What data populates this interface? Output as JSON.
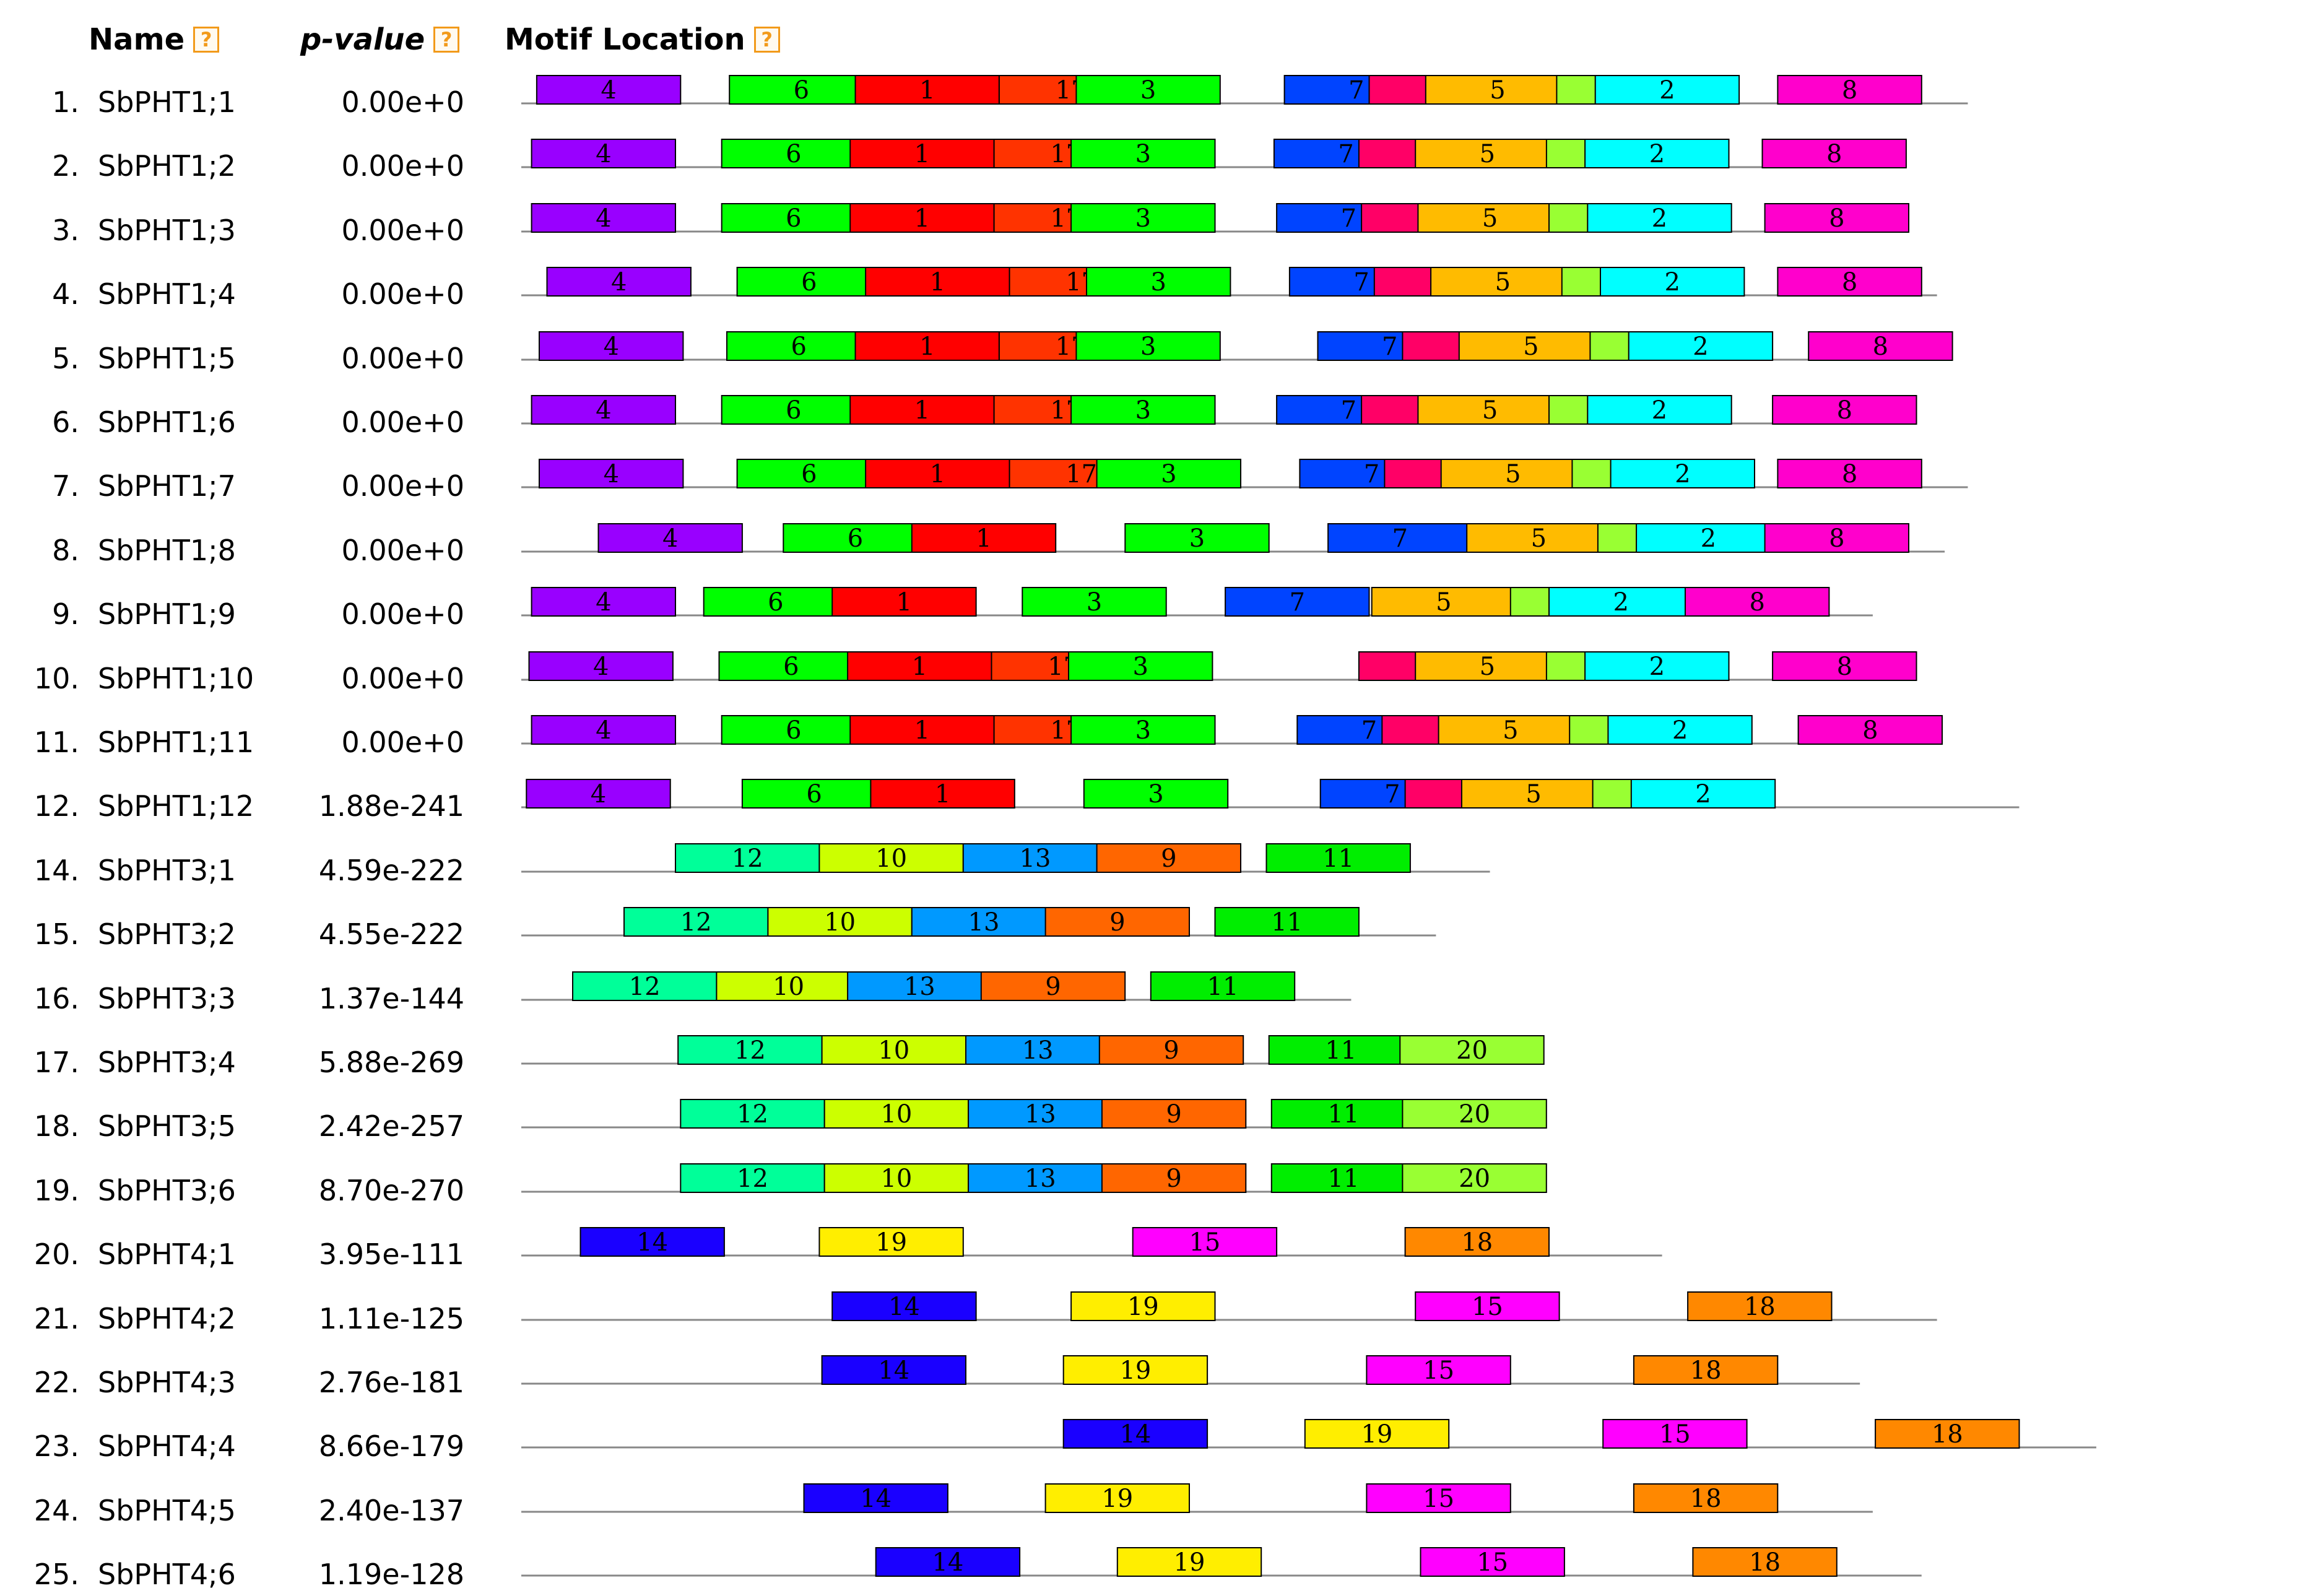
{
  "header": {
    "name_label": "Name",
    "pvalue_label": "p-value",
    "motif_label": "Motif Location",
    "help_glyph": "?"
  },
  "motif_colors": {
    "1": "#ff0000",
    "2": "#00ffff",
    "3": "#00ff00",
    "4": "#9900ff",
    "5": "#ffbb00",
    "6": "#00ff00",
    "7": "#0044ff",
    "8": "#ff00cc",
    "9": "#ff6600",
    "10": "#ccff00",
    "11": "#00ee00",
    "12": "#00ff99",
    "13": "#0099ff",
    "14": "#1a00ff",
    "15": "#ff00ff",
    "16": "#ff0066",
    "17": "#ff3300",
    "18": "#ff8800",
    "19": "#ffee00",
    "20": "#99ff33"
  },
  "rows": [
    {
      "index": "1.",
      "name": "SbPHT1;1",
      "pvalue": "0.00e+0",
      "length": 563,
      "motifs": [
        {
          "id": "4",
          "start": 6
        },
        {
          "id": "6",
          "start": 81
        },
        {
          "id": "1",
          "start": 130
        },
        {
          "id": "17",
          "start": 186
        },
        {
          "id": "3",
          "start": 216
        },
        {
          "id": "7",
          "start": 297
        },
        {
          "id": "16",
          "start": 330
        },
        {
          "id": "5",
          "start": 352
        },
        {
          "id": "20",
          "start": 403
        },
        {
          "id": "2",
          "start": 418
        },
        {
          "id": "8",
          "start": 489
        }
      ]
    },
    {
      "index": "2.",
      "name": "SbPHT1;2",
      "pvalue": "0.00e+0",
      "length": 538,
      "motifs": [
        {
          "id": "4",
          "start": 4
        },
        {
          "id": "6",
          "start": 78
        },
        {
          "id": "1",
          "start": 128
        },
        {
          "id": "17",
          "start": 184
        },
        {
          "id": "3",
          "start": 214
        },
        {
          "id": "7",
          "start": 293
        },
        {
          "id": "16",
          "start": 326
        },
        {
          "id": "5",
          "start": 348
        },
        {
          "id": "20",
          "start": 399
        },
        {
          "id": "2",
          "start": 414
        },
        {
          "id": "8",
          "start": 483
        }
      ]
    },
    {
      "index": "3.",
      "name": "SbPHT1;3",
      "pvalue": "0.00e+0",
      "length": 538,
      "motifs": [
        {
          "id": "4",
          "start": 4
        },
        {
          "id": "6",
          "start": 78
        },
        {
          "id": "1",
          "start": 128
        },
        {
          "id": "17",
          "start": 184
        },
        {
          "id": "3",
          "start": 214
        },
        {
          "id": "7",
          "start": 294
        },
        {
          "id": "16",
          "start": 327
        },
        {
          "id": "5",
          "start": 349
        },
        {
          "id": "20",
          "start": 400
        },
        {
          "id": "2",
          "start": 415
        },
        {
          "id": "8",
          "start": 484
        }
      ]
    },
    {
      "index": "4.",
      "name": "SbPHT1;4",
      "pvalue": "0.00e+0",
      "length": 551,
      "motifs": [
        {
          "id": "4",
          "start": 10
        },
        {
          "id": "6",
          "start": 84
        },
        {
          "id": "1",
          "start": 134
        },
        {
          "id": "17",
          "start": 190
        },
        {
          "id": "3",
          "start": 220
        },
        {
          "id": "7",
          "start": 299
        },
        {
          "id": "16",
          "start": 332
        },
        {
          "id": "5",
          "start": 354
        },
        {
          "id": "20",
          "start": 405
        },
        {
          "id": "2",
          "start": 420
        },
        {
          "id": "8",
          "start": 489
        }
      ]
    },
    {
      "index": "5.",
      "name": "SbPHT1;5",
      "pvalue": "0.00e+0",
      "length": 551,
      "motifs": [
        {
          "id": "4",
          "start": 7
        },
        {
          "id": "6",
          "start": 80
        },
        {
          "id": "1",
          "start": 130
        },
        {
          "id": "17",
          "start": 186
        },
        {
          "id": "3",
          "start": 216
        },
        {
          "id": "7",
          "start": 310
        },
        {
          "id": "16",
          "start": 343
        },
        {
          "id": "5",
          "start": 365
        },
        {
          "id": "20",
          "start": 416
        },
        {
          "id": "2",
          "start": 431
        },
        {
          "id": "8",
          "start": 501
        }
      ]
    },
    {
      "index": "6.",
      "name": "SbPHT1;6",
      "pvalue": "0.00e+0",
      "length": 538,
      "motifs": [
        {
          "id": "4",
          "start": 4
        },
        {
          "id": "6",
          "start": 78
        },
        {
          "id": "1",
          "start": 128
        },
        {
          "id": "17",
          "start": 184
        },
        {
          "id": "3",
          "start": 214
        },
        {
          "id": "7",
          "start": 294
        },
        {
          "id": "16",
          "start": 327
        },
        {
          "id": "5",
          "start": 349
        },
        {
          "id": "20",
          "start": 400
        },
        {
          "id": "2",
          "start": 415
        },
        {
          "id": "8",
          "start": 487
        }
      ]
    },
    {
      "index": "7.",
      "name": "SbPHT1;7",
      "pvalue": "0.00e+0",
      "length": 563,
      "motifs": [
        {
          "id": "4",
          "start": 7
        },
        {
          "id": "6",
          "start": 84
        },
        {
          "id": "1",
          "start": 134
        },
        {
          "id": "17",
          "start": 190
        },
        {
          "id": "3",
          "start": 224
        },
        {
          "id": "7",
          "start": 303
        },
        {
          "id": "16",
          "start": 336
        },
        {
          "id": "5",
          "start": 358
        },
        {
          "id": "20",
          "start": 409
        },
        {
          "id": "2",
          "start": 424
        },
        {
          "id": "8",
          "start": 489
        }
      ]
    },
    {
      "index": "8.",
      "name": "SbPHT1;8",
      "pvalue": "0.00e+0",
      "length": 554,
      "motifs": [
        {
          "id": "4",
          "start": 30
        },
        {
          "id": "6",
          "start": 102
        },
        {
          "id": "1",
          "start": 152
        },
        {
          "id": "3",
          "start": 235
        },
        {
          "id": "7",
          "start": 314
        },
        {
          "id": "5",
          "start": 368
        },
        {
          "id": "20",
          "start": 419
        },
        {
          "id": "2",
          "start": 434
        },
        {
          "id": "8",
          "start": 484
        }
      ]
    },
    {
      "index": "9.",
      "name": "SbPHT1;9",
      "pvalue": "0.00e+0",
      "length": 526,
      "motifs": [
        {
          "id": "4",
          "start": 4
        },
        {
          "id": "6",
          "start": 71
        },
        {
          "id": "1",
          "start": 121
        },
        {
          "id": "3",
          "start": 195
        },
        {
          "id": "7",
          "start": 274
        },
        {
          "id": "5",
          "start": 331
        },
        {
          "id": "20",
          "start": 385
        },
        {
          "id": "2",
          "start": 400
        },
        {
          "id": "8",
          "start": 453
        }
      ]
    },
    {
      "index": "10.",
      "name": "SbPHT1;10",
      "pvalue": "0.00e+0",
      "length": 542,
      "motifs": [
        {
          "id": "4",
          "start": 3
        },
        {
          "id": "6",
          "start": 77
        },
        {
          "id": "1",
          "start": 127
        },
        {
          "id": "17",
          "start": 183
        },
        {
          "id": "3",
          "start": 213
        },
        {
          "id": "16",
          "start": 326
        },
        {
          "id": "5",
          "start": 348
        },
        {
          "id": "20",
          "start": 399
        },
        {
          "id": "2",
          "start": 414
        },
        {
          "id": "8",
          "start": 487
        }
      ]
    },
    {
      "index": "11.",
      "name": "SbPHT1;11",
      "pvalue": "0.00e+0",
      "length": 542,
      "motifs": [
        {
          "id": "4",
          "start": 4
        },
        {
          "id": "6",
          "start": 78
        },
        {
          "id": "1",
          "start": 128
        },
        {
          "id": "17",
          "start": 184
        },
        {
          "id": "3",
          "start": 214
        },
        {
          "id": "7",
          "start": 302
        },
        {
          "id": "16",
          "start": 335
        },
        {
          "id": "5",
          "start": 357
        },
        {
          "id": "20",
          "start": 408
        },
        {
          "id": "2",
          "start": 423
        },
        {
          "id": "8",
          "start": 497
        }
      ]
    },
    {
      "index": "12.",
      "name": "SbPHT1;12",
      "pvalue": "1.88e-241",
      "length": 583,
      "motifs": [
        {
          "id": "4",
          "start": 2
        },
        {
          "id": "6",
          "start": 86
        },
        {
          "id": "1",
          "start": 136
        },
        {
          "id": "3",
          "start": 219
        },
        {
          "id": "7",
          "start": 311
        },
        {
          "id": "16",
          "start": 344
        },
        {
          "id": "5",
          "start": 366
        },
        {
          "id": "20",
          "start": 417
        },
        {
          "id": "2",
          "start": 432
        }
      ]
    },
    {
      "index": "14.",
      "name": "SbPHT3;1",
      "pvalue": "4.59e-222",
      "length": 377,
      "motifs": [
        {
          "id": "12",
          "start": 60
        },
        {
          "id": "10",
          "start": 116
        },
        {
          "id": "13",
          "start": 172
        },
        {
          "id": "9",
          "start": 224
        },
        {
          "id": "11",
          "start": 290
        }
      ]
    },
    {
      "index": "15.",
      "name": "SbPHT3;2",
      "pvalue": "4.55e-222",
      "length": 356,
      "motifs": [
        {
          "id": "12",
          "start": 40
        },
        {
          "id": "10",
          "start": 96
        },
        {
          "id": "13",
          "start": 152
        },
        {
          "id": "9",
          "start": 204
        },
        {
          "id": "11",
          "start": 270
        }
      ]
    },
    {
      "index": "16.",
      "name": "SbPHT3;3",
      "pvalue": "1.37e-144",
      "length": 323,
      "motifs": [
        {
          "id": "12",
          "start": 20
        },
        {
          "id": "10",
          "start": 76
        },
        {
          "id": "13",
          "start": 127
        },
        {
          "id": "9",
          "start": 179
        },
        {
          "id": "11",
          "start": 245
        }
      ]
    },
    {
      "index": "17.",
      "name": "SbPHT3;4",
      "pvalue": "5.88e-269",
      "length": 377,
      "motifs": [
        {
          "id": "12",
          "start": 61
        },
        {
          "id": "10",
          "start": 117
        },
        {
          "id": "13",
          "start": 173
        },
        {
          "id": "9",
          "start": 225
        },
        {
          "id": "11",
          "start": 291
        },
        {
          "id": "20",
          "start": 342
        }
      ]
    },
    {
      "index": "18.",
      "name": "SbPHT3;5",
      "pvalue": "2.42e-257",
      "length": 369,
      "motifs": [
        {
          "id": "12",
          "start": 62
        },
        {
          "id": "10",
          "start": 118
        },
        {
          "id": "13",
          "start": 174
        },
        {
          "id": "9",
          "start": 226
        },
        {
          "id": "11",
          "start": 292
        },
        {
          "id": "20",
          "start": 343
        }
      ]
    },
    {
      "index": "19.",
      "name": "SbPHT3;6",
      "pvalue": "8.70e-270",
      "length": 377,
      "motifs": [
        {
          "id": "12",
          "start": 62
        },
        {
          "id": "10",
          "start": 118
        },
        {
          "id": "13",
          "start": 174
        },
        {
          "id": "9",
          "start": 226
        },
        {
          "id": "11",
          "start": 292
        },
        {
          "id": "20",
          "start": 343
        }
      ]
    },
    {
      "index": "20.",
      "name": "SbPHT4;1",
      "pvalue": "3.95e-111",
      "length": 444,
      "motifs": [
        {
          "id": "14",
          "start": 23
        },
        {
          "id": "19",
          "start": 116
        },
        {
          "id": "15",
          "start": 238
        },
        {
          "id": "18",
          "start": 344
        }
      ]
    },
    {
      "index": "21.",
      "name": "SbPHT4;2",
      "pvalue": "1.11e-125",
      "length": 551,
      "motifs": [
        {
          "id": "14",
          "start": 121
        },
        {
          "id": "19",
          "start": 214
        },
        {
          "id": "15",
          "start": 348
        },
        {
          "id": "18",
          "start": 454
        }
      ]
    },
    {
      "index": "22.",
      "name": "SbPHT4;3",
      "pvalue": "2.76e-181",
      "length": 521,
      "motifs": [
        {
          "id": "14",
          "start": 117
        },
        {
          "id": "19",
          "start": 211
        },
        {
          "id": "15",
          "start": 329
        },
        {
          "id": "18",
          "start": 433
        }
      ]
    },
    {
      "index": "23.",
      "name": "SbPHT4;4",
      "pvalue": "8.66e-179",
      "length": 613,
      "motifs": [
        {
          "id": "14",
          "start": 211
        },
        {
          "id": "19",
          "start": 305
        },
        {
          "id": "15",
          "start": 421
        },
        {
          "id": "18",
          "start": 527
        }
      ]
    },
    {
      "index": "24.",
      "name": "SbPHT4;5",
      "pvalue": "2.40e-137",
      "length": 526,
      "motifs": [
        {
          "id": "14",
          "start": 110
        },
        {
          "id": "19",
          "start": 204
        },
        {
          "id": "15",
          "start": 329
        },
        {
          "id": "18",
          "start": 433
        }
      ]
    },
    {
      "index": "25.",
      "name": "SbPHT4;6",
      "pvalue": "1.19e-128",
      "length": 545,
      "motifs": [
        {
          "id": "14",
          "start": 138
        },
        {
          "id": "19",
          "start": 232
        },
        {
          "id": "15",
          "start": 350
        },
        {
          "id": "18",
          "start": 456
        }
      ]
    }
  ]
}
